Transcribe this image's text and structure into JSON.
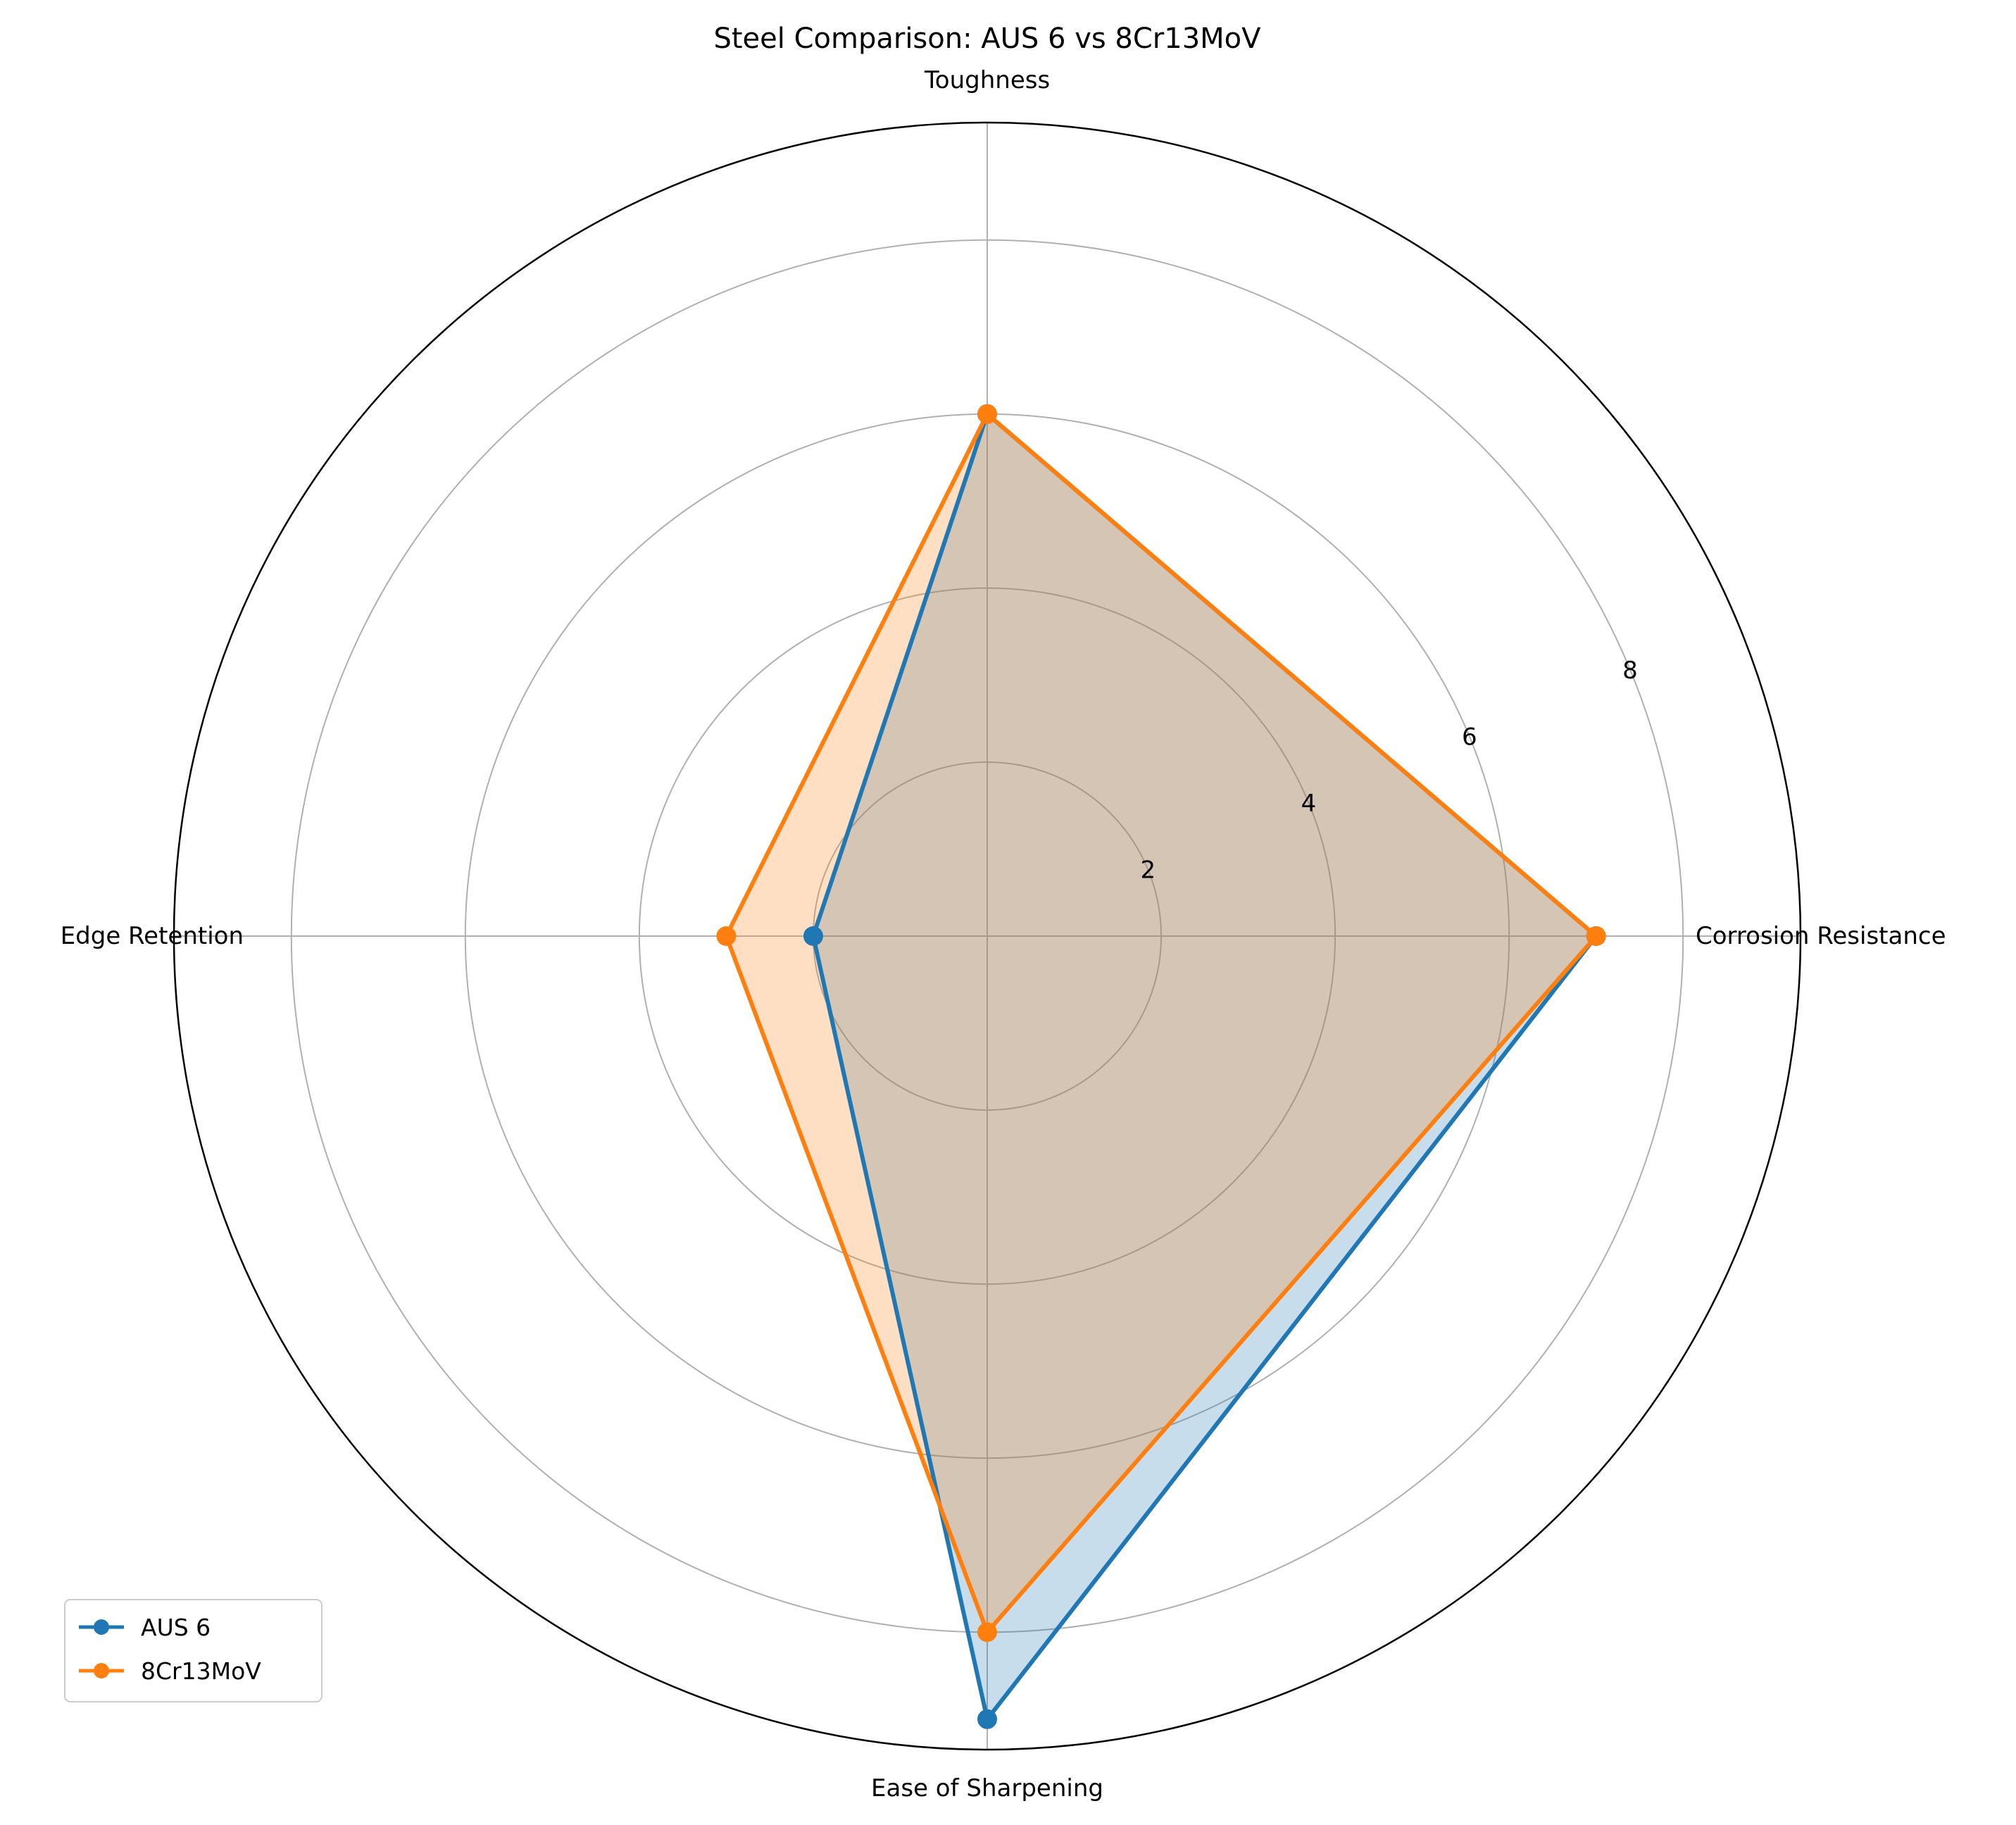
{
  "chart_data": {
    "type": "radar",
    "title": "Steel Comparison: AUS 6 vs 8Cr13MoV",
    "categories": [
      "Corrosion Resistance",
      "Toughness",
      "Edge Retention",
      "Ease of Sharpening"
    ],
    "series": [
      {
        "name": "AUS 6",
        "values": [
          7,
          6,
          2,
          9
        ],
        "color": "#1f77b4"
      },
      {
        "name": "8Cr13MoV",
        "values": [
          7,
          6,
          3,
          8
        ],
        "color": "#ff7f0e"
      }
    ],
    "rlim": [
      0,
      9.35
    ],
    "radial_ticks": [
      2,
      4,
      6,
      8
    ],
    "radial_tick_labels": [
      "2",
      "4",
      "6",
      "8"
    ],
    "grid": true,
    "legend_position": "lower-left"
  }
}
